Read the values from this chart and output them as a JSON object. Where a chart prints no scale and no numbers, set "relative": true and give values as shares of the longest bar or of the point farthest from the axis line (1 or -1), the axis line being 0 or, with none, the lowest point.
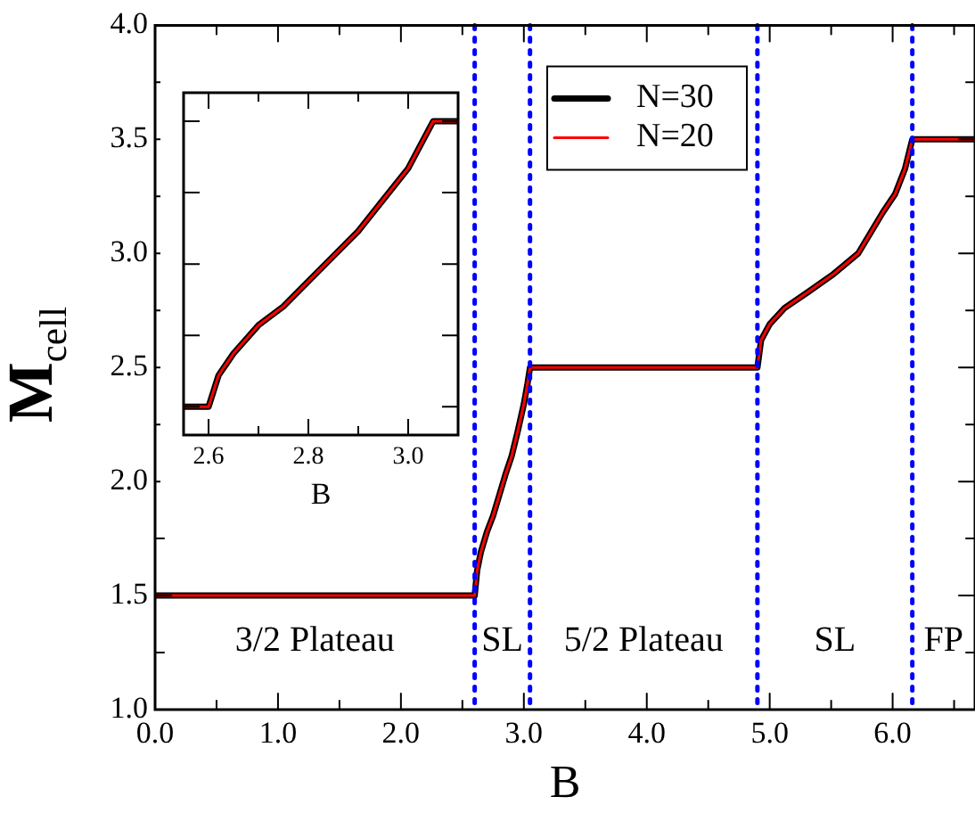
{
  "chart_data": [
    {
      "type": "line",
      "xlabel": "B",
      "ylabel": "M$_{cell}$",
      "xlim": [
        0,
        6.67
      ],
      "ylim": [
        1.0,
        4.0
      ],
      "xticks": [
        {
          "value": 0,
          "label": "0.0"
        },
        {
          "value": 0.5,
          "label": null
        },
        {
          "value": 1,
          "label": "1.0"
        },
        {
          "value": 1.5,
          "label": null
        },
        {
          "value": 2,
          "label": "2.0"
        },
        {
          "value": 2.5,
          "label": null
        },
        {
          "value": 3,
          "label": "3.0"
        },
        {
          "value": 3.5,
          "label": null
        },
        {
          "value": 4,
          "label": "4.0"
        },
        {
          "value": 4.5,
          "label": null
        },
        {
          "value": 5,
          "label": "5.0"
        },
        {
          "value": 5.5,
          "label": null
        },
        {
          "value": 6,
          "label": "6.0"
        },
        {
          "value": 6.5,
          "label": null
        }
      ],
      "yticks": [
        {
          "value": 1,
          "label": "1.0"
        },
        {
          "value": 1.25,
          "label": null
        },
        {
          "value": 1.5,
          "label": "1.5"
        },
        {
          "value": 1.75,
          "label": null
        },
        {
          "value": 2,
          "label": "2.0"
        },
        {
          "value": 2.25,
          "label": null
        },
        {
          "value": 2.5,
          "label": "2.5"
        },
        {
          "value": 2.75,
          "label": null
        },
        {
          "value": 3,
          "label": "3.0"
        },
        {
          "value": 3.25,
          "label": null
        },
        {
          "value": 3.5,
          "label": "3.5"
        },
        {
          "value": 3.75,
          "label": null
        },
        {
          "value": 4,
          "label": "4.0"
        }
      ],
      "series": [
        {
          "name": "N=30",
          "color": "#000000",
          "x": [
            0,
            2.6,
            2.62,
            2.65,
            2.7,
            2.75,
            2.8,
            2.85,
            2.9,
            2.95,
            3.0,
            3.03,
            3.05,
            4.9,
            4.93,
            5.0,
            5.12,
            5.31,
            5.52,
            5.72,
            5.92,
            6.02,
            6.1,
            6.16,
            6.67
          ],
          "values": [
            1.5,
            1.5,
            1.61,
            1.69,
            1.78,
            1.85,
            1.94,
            2.03,
            2.11,
            2.22,
            2.34,
            2.43,
            2.5,
            2.5,
            2.62,
            2.69,
            2.76,
            2.83,
            2.91,
            3.0,
            3.18,
            3.26,
            3.37,
            3.5,
            3.5
          ]
        },
        {
          "name": "N=20",
          "color": "#ff0000",
          "x": [
            0,
            2.6,
            2.62,
            2.65,
            2.7,
            2.75,
            2.8,
            2.85,
            2.9,
            2.95,
            3.0,
            3.03,
            3.05,
            4.9,
            4.93,
            5.0,
            5.12,
            5.31,
            5.52,
            5.72,
            5.92,
            6.02,
            6.1,
            6.16,
            6.67
          ],
          "values": [
            1.5,
            1.5,
            1.61,
            1.69,
            1.78,
            1.85,
            1.94,
            2.03,
            2.11,
            2.22,
            2.34,
            2.43,
            2.5,
            2.5,
            2.62,
            2.69,
            2.76,
            2.83,
            2.91,
            3.0,
            3.18,
            3.26,
            3.37,
            3.5,
            3.5
          ]
        }
      ],
      "ref_lines": [
        {
          "axis": "x",
          "value": 2.6,
          "color": "#0000ff",
          "line_style": "dotted"
        },
        {
          "axis": "x",
          "value": 3.05,
          "color": "#0000ff",
          "line_style": "dotted"
        },
        {
          "axis": "x",
          "value": 4.9,
          "color": "#0000ff",
          "line_style": "dotted"
        },
        {
          "axis": "x",
          "value": 6.16,
          "color": "#0000ff",
          "line_style": "dotted"
        }
      ],
      "annotations": [
        "3/2 Plateau",
        "SL",
        "5/2 Plateau",
        "SL",
        "FP"
      ],
      "legend": "top",
      "grid": false
    },
    {
      "type": "line",
      "xlabel": "B",
      "xlim": [
        2.55,
        3.1
      ],
      "relative": true,
      "xticks": [
        {
          "value": 2.6,
          "label": "2.6"
        },
        {
          "value": 2.7,
          "label": null
        },
        {
          "value": 2.8,
          "label": "2.8"
        },
        {
          "value": 2.9,
          "label": null
        },
        {
          "value": 3.0,
          "label": "3.0"
        }
      ],
      "tick_labels": "x",
      "series": [
        {
          "color": "#000000",
          "x": [
            2.55,
            2.6,
            2.62,
            2.65,
            2.7,
            2.75,
            2.8,
            2.85,
            2.9,
            2.95,
            3.0,
            3.03,
            3.05,
            3.1
          ],
          "values": [
            0.09,
            0.09,
            0.19,
            0.26,
            0.35,
            0.41,
            0.49,
            0.57,
            0.65,
            0.75,
            0.85,
            0.94,
            1,
            1
          ]
        },
        {
          "color": "#ff0000",
          "x": [
            2.55,
            2.6,
            2.62,
            2.65,
            2.7,
            2.75,
            2.8,
            2.85,
            2.9,
            2.95,
            3.0,
            3.03,
            3.05,
            3.1
          ],
          "values": [
            0.09,
            0.09,
            0.19,
            0.26,
            0.35,
            0.41,
            0.49,
            0.57,
            0.65,
            0.75,
            0.85,
            0.94,
            1,
            1
          ]
        }
      ],
      "grid": false
    }
  ]
}
